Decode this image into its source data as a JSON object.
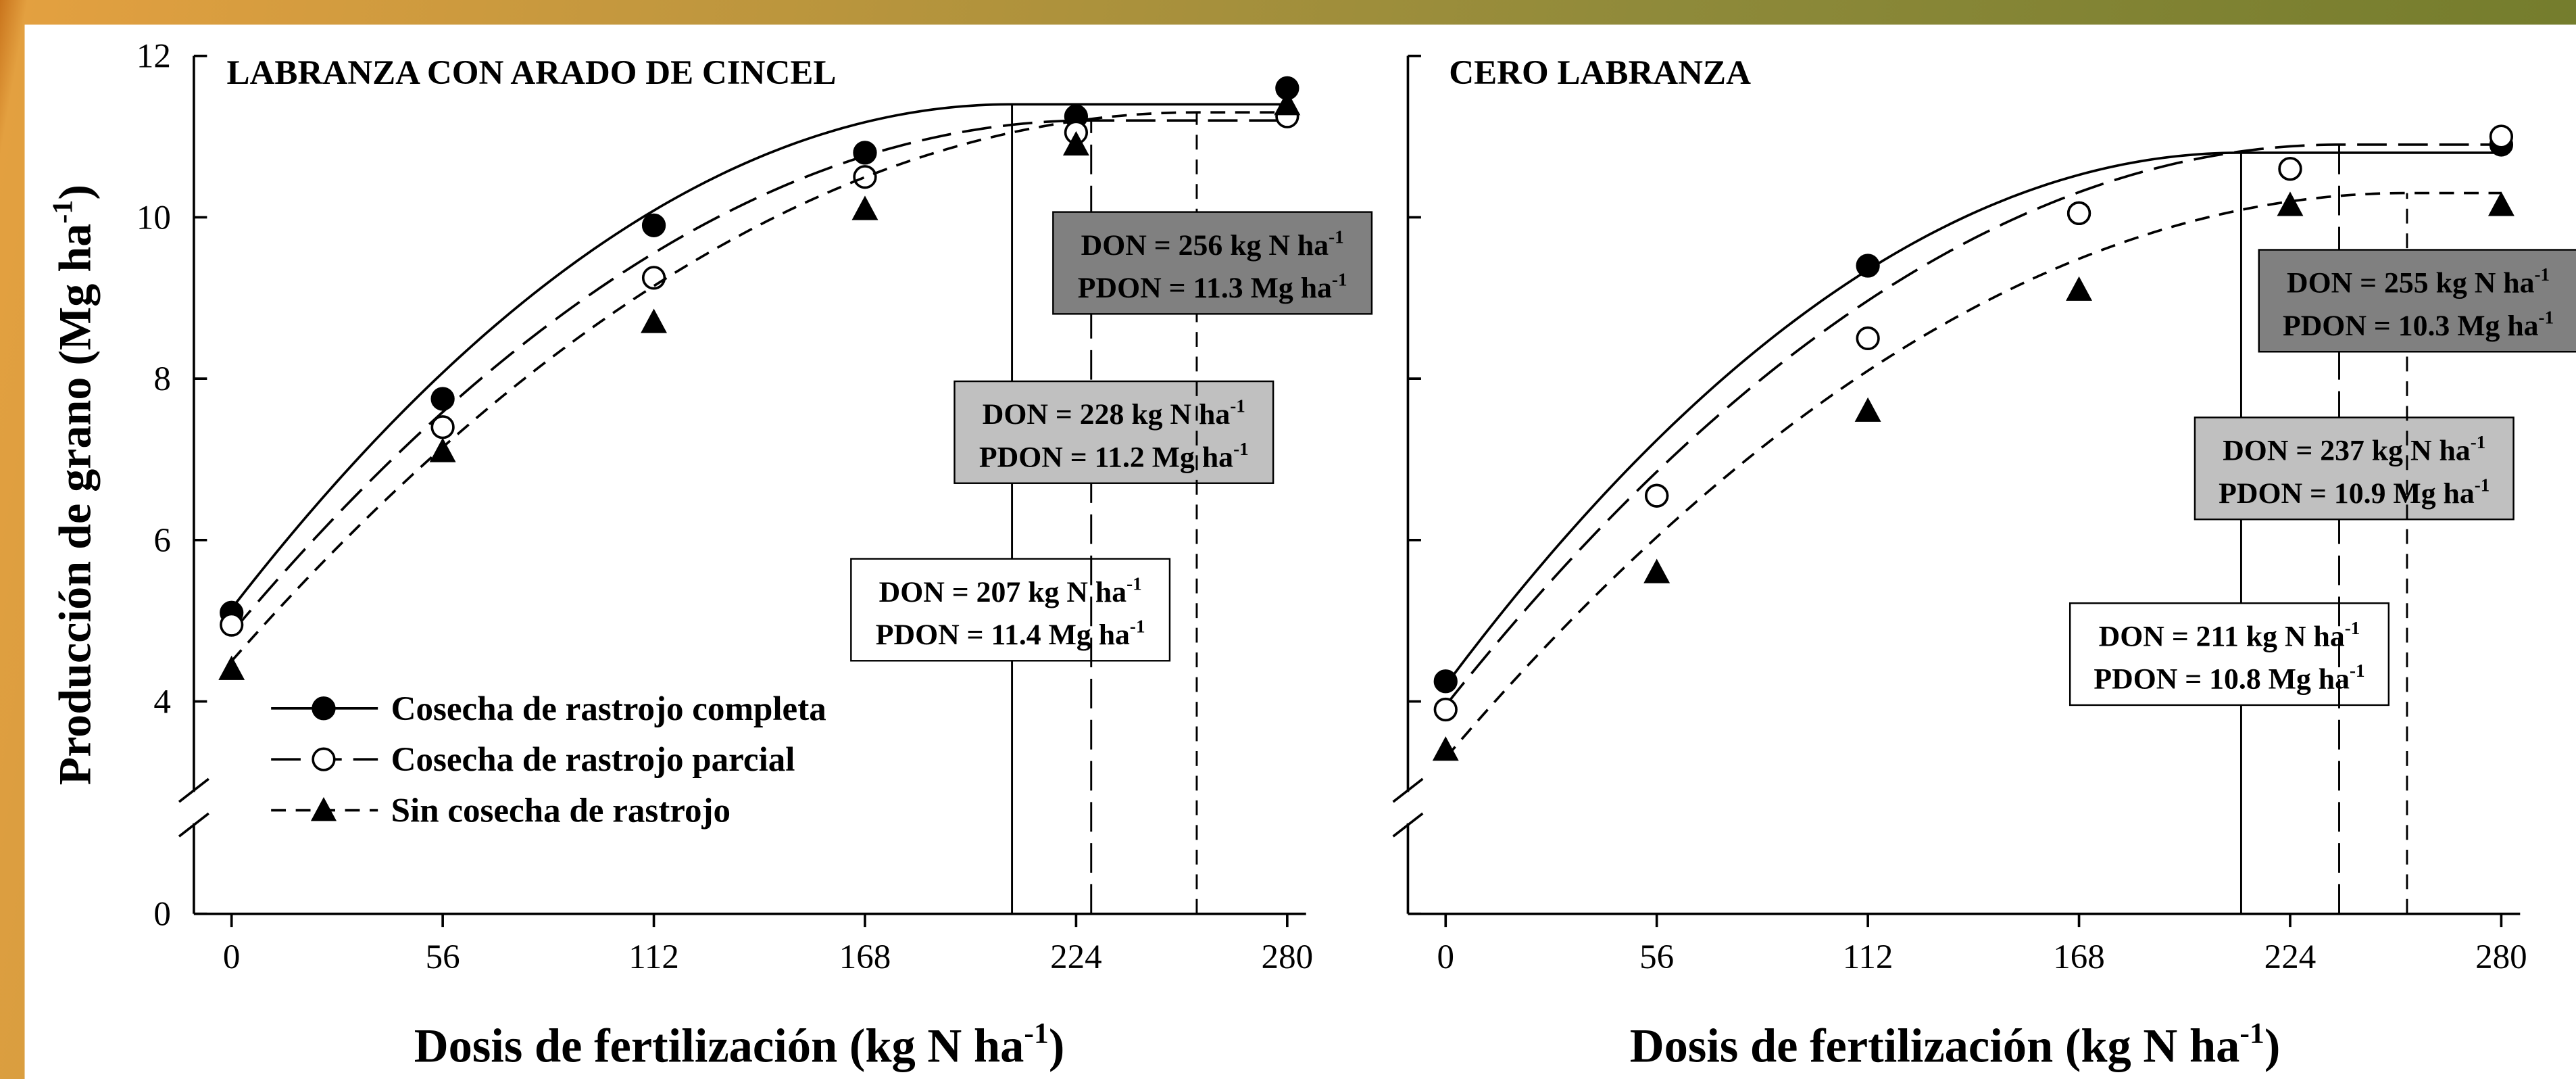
{
  "chart_data": [
    {
      "type": "scatter",
      "title": "LABRANZA CON ARADO DE CINCEL",
      "xlabel": [
        "Dosis de fertilización (kg N ha",
        "-1",
        ")"
      ],
      "ylabel": [
        "Producción de grano (Mg ha",
        "-1",
        ")"
      ],
      "x": [
        0,
        56,
        112,
        168,
        224,
        280
      ],
      "xlim": [
        -10,
        285
      ],
      "xticks": [
        0,
        56,
        112,
        168,
        224,
        280
      ],
      "ylim": [
        0,
        12
      ],
      "yticks": [
        0,
        4,
        6,
        8,
        10,
        12
      ],
      "y_break": [
        1,
        3
      ],
      "show_ytick_labels": true,
      "series": [
        {
          "name": "Cosecha de rastrojo completa",
          "marker": "circle",
          "color": "#000000",
          "dash": "solid",
          "values": [
            5.1,
            7.75,
            9.9,
            10.8,
            11.25,
            11.6
          ],
          "y0": 5.15,
          "don": 207,
          "pdon": 11.4,
          "don_label": [
            "DON = 207 kg N ha",
            "-1"
          ],
          "pdon_label": [
            "PDON = 11.4 Mg ha",
            "-1"
          ],
          "box_color": "#ffffff"
        },
        {
          "name": "Cosecha de rastrojo parcial",
          "marker": "circle",
          "color": "#ffffff",
          "dash": "long-dash",
          "values": [
            4.95,
            7.4,
            9.25,
            10.5,
            11.05,
            11.25
          ],
          "y0": 4.85,
          "don": 228,
          "pdon": 11.2,
          "don_label": [
            "DON = 228 kg N ha",
            "-1"
          ],
          "pdon_label": [
            "PDON = 11.2 Mg ha",
            "-1"
          ],
          "box_color": "#c0c0c0"
        },
        {
          "name": "Sin cosecha de rastrojo",
          "marker": "triangle",
          "color": "#000000",
          "dash": "short-dash",
          "values": [
            4.4,
            7.1,
            8.7,
            10.1,
            10.9,
            11.4
          ],
          "y0": 4.5,
          "don": 256,
          "pdon": 11.3,
          "don_label": [
            "DON = 256 kg N ha",
            "-1"
          ],
          "pdon_label": [
            "PDON = 11.3 Mg ha",
            "-1"
          ],
          "box_color": "#808080"
        }
      ]
    },
    {
      "type": "scatter",
      "title": "CERO LABRANZA",
      "xlabel": [
        "Dosis de fertilización (kg N ha",
        "-1",
        ")"
      ],
      "x": [
        0,
        56,
        112,
        168,
        224,
        280
      ],
      "xlim": [
        -10,
        285
      ],
      "xticks": [
        0,
        56,
        112,
        168,
        224,
        280
      ],
      "ylim": [
        0,
        12
      ],
      "yticks": [
        0,
        4,
        6,
        8,
        10,
        12
      ],
      "y_break": [
        1,
        3
      ],
      "show_ytick_labels": false,
      "series": [
        {
          "marker": "circle",
          "color": "#000000",
          "dash": "solid",
          "values": [
            4.25,
            6.55,
            9.4,
            10.05,
            10.6,
            10.9
          ],
          "y0": 4.2,
          "don": 211,
          "pdon": 10.8,
          "don_label": [
            "DON = 211 kg N ha",
            "-1"
          ],
          "pdon_label": [
            "PDON = 10.8 Mg ha",
            "-1"
          ],
          "box_color": "#ffffff"
        },
        {
          "marker": "circle",
          "color": "#ffffff",
          "dash": "long-dash",
          "values": [
            3.9,
            6.55,
            8.5,
            10.05,
            10.6,
            11.0
          ],
          "y0": 3.95,
          "don": 237,
          "pdon": 10.9,
          "don_label": [
            "DON = 237 kg N ha",
            "-1"
          ],
          "pdon_label": [
            "PDON = 10.9 Mg ha",
            "-1"
          ],
          "box_color": "#c0c0c0"
        },
        {
          "marker": "triangle",
          "color": "#000000",
          "dash": "short-dash",
          "values": [
            3.4,
            5.6,
            7.6,
            9.1,
            10.15,
            10.15
          ],
          "y0": 3.3,
          "don": 255,
          "pdon": 10.3,
          "don_label": [
            "DON = 255 kg N ha",
            "-1"
          ],
          "pdon_label": [
            "PDON = 10.3 Mg ha",
            "-1"
          ],
          "box_color": "#808080"
        }
      ]
    }
  ]
}
